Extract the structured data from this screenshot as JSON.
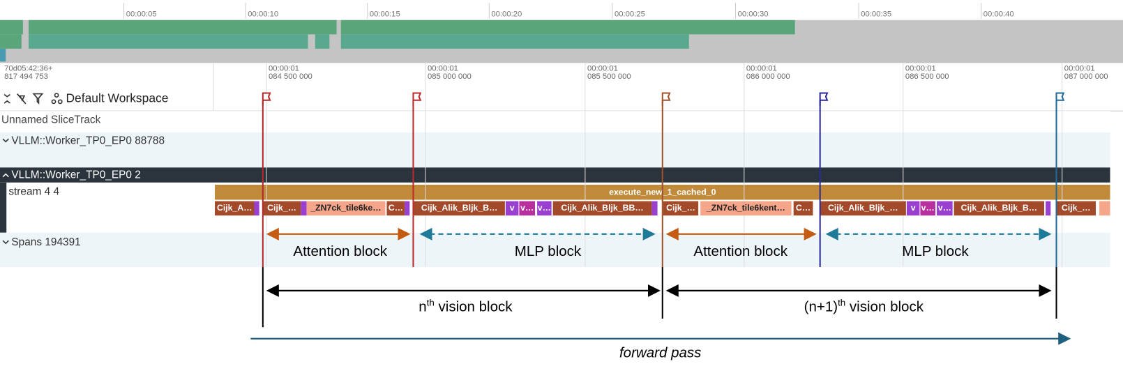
{
  "overview": {
    "ticks": [
      "00:00:05",
      "00:00:10",
      "00:00:15",
      "00:00:20",
      "00:00:25",
      "00:00:30",
      "00:00:35",
      "00:00:40"
    ]
  },
  "timeline": {
    "origin": [
      "70d05:42:36+",
      "817 494 753"
    ],
    "ticks": [
      [
        "00:00:01",
        "084 500 000"
      ],
      [
        "00:00:01",
        "085 000 000"
      ],
      [
        "00:00:01",
        "085 500 000"
      ],
      [
        "00:00:01",
        "086 000 000"
      ],
      [
        "00:00:01",
        "086 500 000"
      ],
      [
        "00:00:01",
        "087 000 000"
      ]
    ]
  },
  "toolbar": {
    "workspace": "Default Workspace"
  },
  "tracks": [
    "Unnamed SliceTrack",
    "VLLM::Worker_TP0_EP0 88788",
    "VLLM::Worker_TP0_EP0 2",
    "stream 4 4",
    "Spans 194391"
  ],
  "slices": {
    "top": "execute_new_1_cached_0",
    "children": [
      "Cijk_A…",
      "Cijk_…",
      "_ZN7ck_tile6ke…",
      "C…",
      "Cijk_Alik_Bljk_B…",
      "v",
      "v…",
      "v…",
      "Cijk_Alik_Bljk_BB…",
      "Cijk_…",
      "_ZN7ck_tile6kent…",
      "C…",
      "Cijk_Alik_Bljk_…",
      "v",
      "v…",
      "v…",
      "Cijk_Alik_Bljk_B…",
      "Cijk_…"
    ]
  },
  "annotations": {
    "blocks": [
      "Attention block",
      "MLP block",
      "Attention block",
      "MLP block"
    ],
    "vision": [
      {
        "pre": "n",
        "sup": "th",
        "post": " vision block"
      },
      {
        "pre": "(n+1)",
        "sup": "th",
        "post": " vision block"
      }
    ],
    "forward": "forward pass"
  }
}
